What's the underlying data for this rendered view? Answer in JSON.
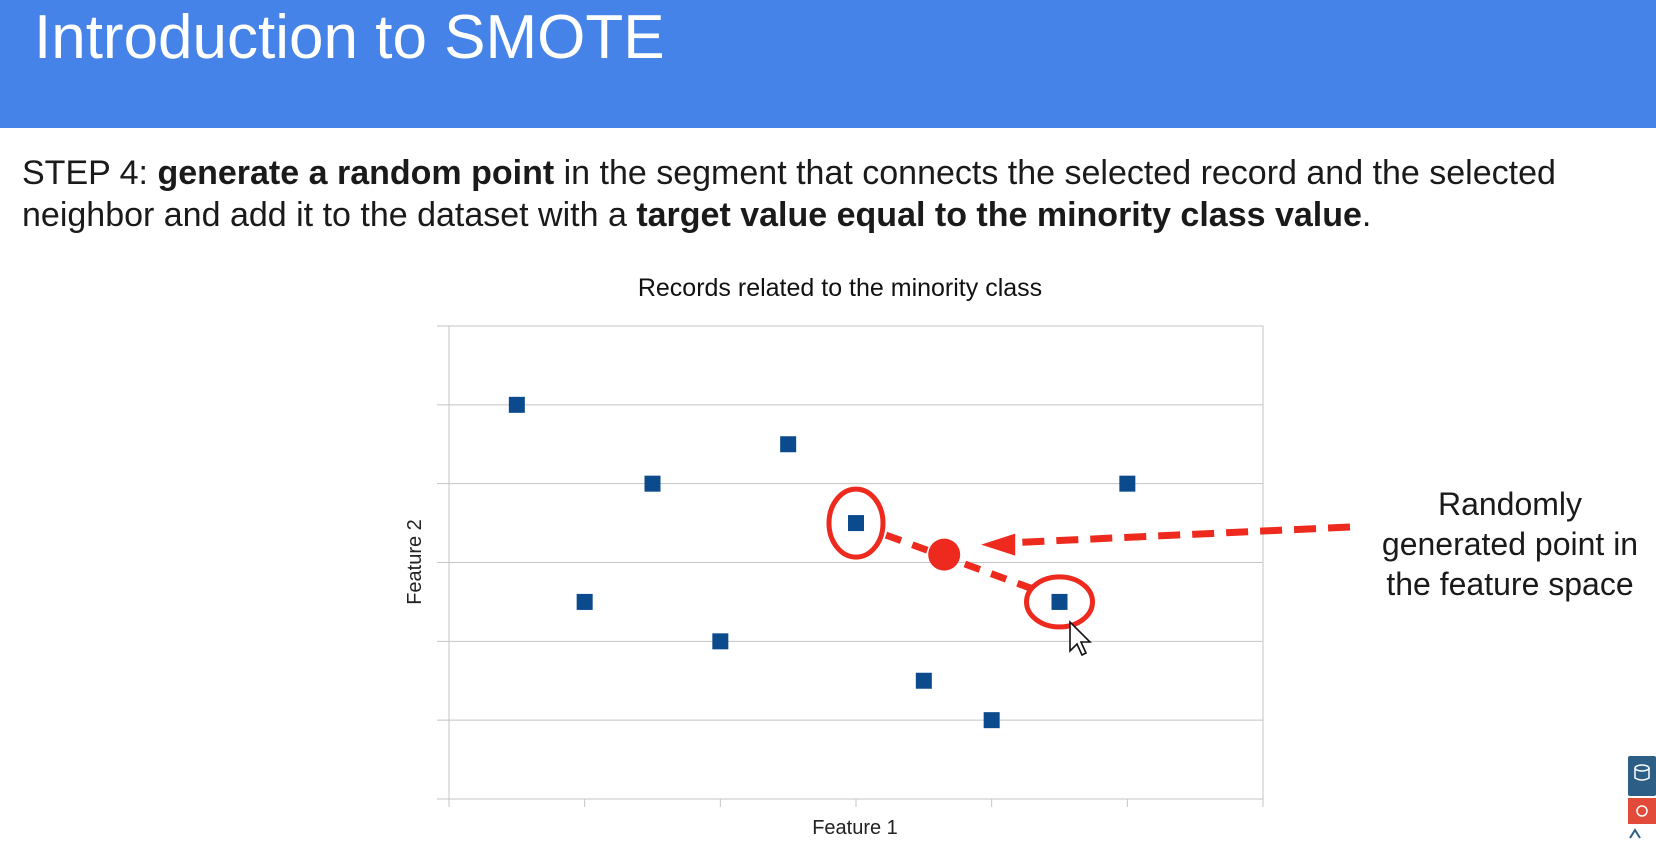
{
  "header": {
    "title": "Introduction to SMOTE"
  },
  "step": {
    "prefix": "STEP 4: ",
    "bold1": "generate a random point",
    "middle": " in the segment that connects the selected record and the selected neighbor and add it to the dataset with a ",
    "bold2": "target value equal to the minority class value",
    "suffix": "."
  },
  "annotation": {
    "lines": [
      "Randomly",
      "generated point in",
      "the feature space"
    ]
  },
  "colors": {
    "header": "#4683e8",
    "points": "#0b4a8c",
    "highlight": "#ee2a1e"
  },
  "chart_data": {
    "type": "scatter",
    "title": "Records related to the minority class",
    "xlabel": "Feature 1",
    "ylabel": "Feature 2",
    "xlim": [
      0,
      6
    ],
    "ylim": [
      0,
      6
    ],
    "grid": "horizontal",
    "x_ticks": [
      0,
      1,
      2,
      3,
      4,
      5,
      6
    ],
    "y_ticks": [
      0,
      1,
      2,
      3,
      4,
      5,
      6
    ],
    "series": [
      {
        "values": [
          {
            "x": 0.5,
            "y": 5.0
          },
          {
            "x": 1.0,
            "y": 2.5
          },
          {
            "x": 1.5,
            "y": 4.0
          },
          {
            "x": 2.0,
            "y": 2.0
          },
          {
            "x": 2.5,
            "y": 4.5
          },
          {
            "x": 3.0,
            "y": 3.5
          },
          {
            "x": 3.5,
            "y": 1.5
          },
          {
            "x": 4.0,
            "y": 1.0
          },
          {
            "x": 4.5,
            "y": 2.5
          },
          {
            "x": 5.0,
            "y": 4.0
          }
        ]
      }
    ],
    "selected_record": {
      "x": 3.0,
      "y": 3.5
    },
    "selected_neighbor": {
      "x": 4.5,
      "y": 2.5
    },
    "generated_point": {
      "x": 3.65,
      "y": 3.1
    }
  }
}
